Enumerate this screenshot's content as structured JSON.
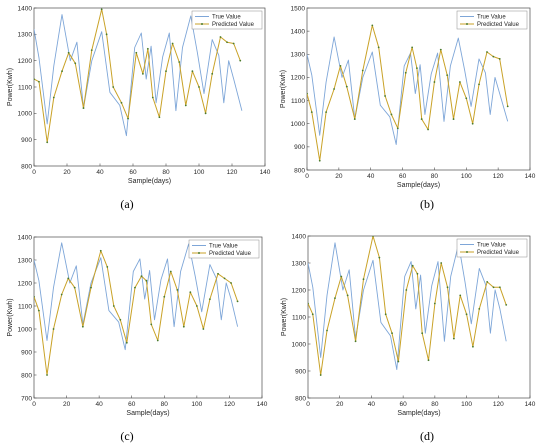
{
  "chart_data": [
    {
      "type": "line",
      "caption": "(a)",
      "xlabel": "Sample(days)",
      "ylabel": "Power(Kwh)",
      "xlim": [
        0,
        140
      ],
      "ylim": [
        800,
        1400
      ],
      "xticks": [
        0,
        20,
        40,
        60,
        80,
        100,
        120,
        140
      ],
      "yticks": [
        800,
        900,
        1000,
        1100,
        1200,
        1300,
        1400
      ],
      "legend_position": "top-right",
      "series": [
        {
          "name": "True Value",
          "color": "#7ea6d8",
          "x": [
            0,
            3,
            8,
            12,
            17,
            22,
            26,
            30,
            35,
            41,
            46,
            52,
            56,
            61,
            65,
            68,
            71,
            74,
            78,
            82,
            86,
            90,
            95,
            99,
            103,
            108,
            112,
            115,
            118,
            121,
            126
          ],
          "values": [
            1320,
            1210,
            960,
            1180,
            1375,
            1200,
            1270,
            1020,
            1200,
            1310,
            1080,
            1030,
            915,
            1250,
            1305,
            1130,
            1255,
            1040,
            1215,
            1305,
            1010,
            1250,
            1370,
            1230,
            1075,
            1280,
            1220,
            1040,
            1200,
            1130,
            1010
          ]
        },
        {
          "name": "Predicted Value",
          "color": "#c9a227",
          "x": [
            0,
            3,
            8,
            12,
            17,
            21,
            25,
            30,
            35,
            41,
            44,
            48,
            53,
            57,
            62,
            66,
            69,
            72,
            76,
            80,
            84,
            88,
            92,
            96,
            100,
            104,
            108,
            113,
            117,
            121,
            125
          ],
          "values": [
            1130,
            1120,
            890,
            1060,
            1160,
            1230,
            1190,
            1020,
            1240,
            1395,
            1300,
            1100,
            1040,
            980,
            1230,
            1150,
            1245,
            1060,
            985,
            1160,
            1265,
            1195,
            1030,
            1160,
            1100,
            1000,
            1150,
            1290,
            1270,
            1265,
            1200
          ]
        }
      ]
    },
    {
      "type": "line",
      "caption": "(b)",
      "xlabel": "Sample(days)",
      "ylabel": "Power(Kwh)",
      "xlim": [
        0,
        140
      ],
      "ylim": [
        800,
        1500
      ],
      "xticks": [
        0,
        20,
        40,
        60,
        80,
        100,
        120,
        140
      ],
      "yticks": [
        800,
        900,
        1000,
        1100,
        1200,
        1300,
        1400,
        1500
      ],
      "legend_position": "top-right",
      "series": [
        {
          "name": "True Value",
          "color": "#7ea6d8",
          "x": [
            0,
            3,
            8,
            12,
            17,
            22,
            26,
            30,
            35,
            41,
            46,
            52,
            56,
            61,
            65,
            68,
            71,
            74,
            78,
            82,
            86,
            90,
            95,
            99,
            103,
            108,
            112,
            115,
            118,
            121,
            126
          ],
          "values": [
            1300,
            1210,
            950,
            1180,
            1375,
            1200,
            1275,
            1020,
            1200,
            1310,
            1080,
            1030,
            910,
            1250,
            1305,
            1130,
            1255,
            1040,
            1215,
            1305,
            1010,
            1250,
            1370,
            1230,
            1075,
            1280,
            1220,
            1040,
            1200,
            1130,
            1010
          ]
        },
        {
          "name": "Predicted Value",
          "color": "#c9a227",
          "x": [
            0,
            3,
            8,
            12,
            17,
            21,
            25,
            30,
            35,
            41,
            45,
            49,
            53,
            57,
            62,
            66,
            69,
            72,
            76,
            80,
            84,
            88,
            92,
            96,
            100,
            104,
            108,
            113,
            117,
            121,
            126
          ],
          "values": [
            1130,
            1050,
            840,
            1050,
            1150,
            1250,
            1160,
            1020,
            1230,
            1425,
            1330,
            1120,
            1040,
            980,
            1220,
            1330,
            1240,
            1020,
            975,
            1180,
            1320,
            1210,
            1020,
            1180,
            1110,
            1000,
            1170,
            1310,
            1290,
            1280,
            1075
          ]
        }
      ]
    },
    {
      "type": "line",
      "caption": "(c)",
      "xlabel": "Sample(days)",
      "ylabel": "Power(Kwh)",
      "xlim": [
        0,
        140
      ],
      "ylim": [
        700,
        1400
      ],
      "xticks": [
        0,
        20,
        40,
        60,
        80,
        100,
        120,
        140
      ],
      "yticks": [
        700,
        800,
        900,
        1000,
        1100,
        1200,
        1300,
        1400
      ],
      "legend_position": "top-right",
      "series": [
        {
          "name": "True Value",
          "color": "#7ea6d8",
          "x": [
            0,
            3,
            8,
            12,
            17,
            22,
            26,
            30,
            35,
            41,
            46,
            52,
            56,
            61,
            65,
            68,
            71,
            74,
            78,
            82,
            86,
            90,
            95,
            99,
            103,
            108,
            112,
            115,
            118,
            121,
            125
          ],
          "values": [
            1300,
            1210,
            950,
            1180,
            1375,
            1200,
            1275,
            1020,
            1200,
            1310,
            1080,
            1030,
            910,
            1250,
            1305,
            1130,
            1255,
            1040,
            1215,
            1305,
            1010,
            1250,
            1370,
            1230,
            1075,
            1280,
            1220,
            1040,
            1200,
            1130,
            1010
          ]
        },
        {
          "name": "Predicted Value",
          "color": "#c9a227",
          "x": [
            0,
            3,
            8,
            12,
            17,
            21,
            25,
            30,
            35,
            41,
            45,
            49,
            53,
            57,
            62,
            66,
            69,
            72,
            76,
            80,
            84,
            88,
            92,
            96,
            100,
            104,
            108,
            113,
            117,
            121,
            125
          ],
          "values": [
            1140,
            1080,
            800,
            1000,
            1150,
            1220,
            1180,
            1010,
            1180,
            1340,
            1270,
            1100,
            1040,
            940,
            1180,
            1230,
            1210,
            1020,
            950,
            1140,
            1250,
            1170,
            1010,
            1160,
            1100,
            1000,
            1130,
            1240,
            1220,
            1200,
            1120
          ]
        }
      ]
    },
    {
      "type": "line",
      "caption": "(d)",
      "xlabel": "Sample(days)",
      "ylabel": "Power(Kwh)",
      "xlim": [
        0,
        140
      ],
      "ylim": [
        800,
        1400
      ],
      "xticks": [
        0,
        20,
        40,
        60,
        80,
        100,
        120,
        140
      ],
      "yticks": [
        800,
        900,
        1000,
        1100,
        1200,
        1300,
        1400
      ],
      "legend_position": "top-right",
      "series": [
        {
          "name": "True Value",
          "color": "#7ea6d8",
          "x": [
            0,
            3,
            8,
            12,
            17,
            22,
            26,
            30,
            35,
            41,
            46,
            52,
            56,
            61,
            65,
            68,
            71,
            74,
            78,
            82,
            86,
            90,
            95,
            99,
            103,
            108,
            112,
            115,
            118,
            121,
            125
          ],
          "values": [
            1300,
            1210,
            950,
            1180,
            1375,
            1200,
            1275,
            1020,
            1200,
            1310,
            1080,
            1030,
            905,
            1250,
            1305,
            1130,
            1255,
            1040,
            1215,
            1305,
            1010,
            1250,
            1370,
            1230,
            1075,
            1280,
            1220,
            1040,
            1200,
            1130,
            1010
          ]
        },
        {
          "name": "Predicted Value",
          "color": "#c9a227",
          "x": [
            0,
            3,
            8,
            12,
            17,
            21,
            25,
            30,
            35,
            41,
            45,
            49,
            53,
            57,
            62,
            66,
            69,
            72,
            76,
            80,
            84,
            88,
            92,
            96,
            100,
            104,
            108,
            113,
            117,
            121,
            125
          ],
          "values": [
            1150,
            1110,
            885,
            1050,
            1170,
            1250,
            1180,
            1010,
            1240,
            1400,
            1320,
            1110,
            1040,
            935,
            1200,
            1290,
            1260,
            1040,
            940,
            1150,
            1300,
            1210,
            1020,
            1180,
            1110,
            990,
            1130,
            1230,
            1210,
            1210,
            1145
          ]
        }
      ]
    }
  ]
}
